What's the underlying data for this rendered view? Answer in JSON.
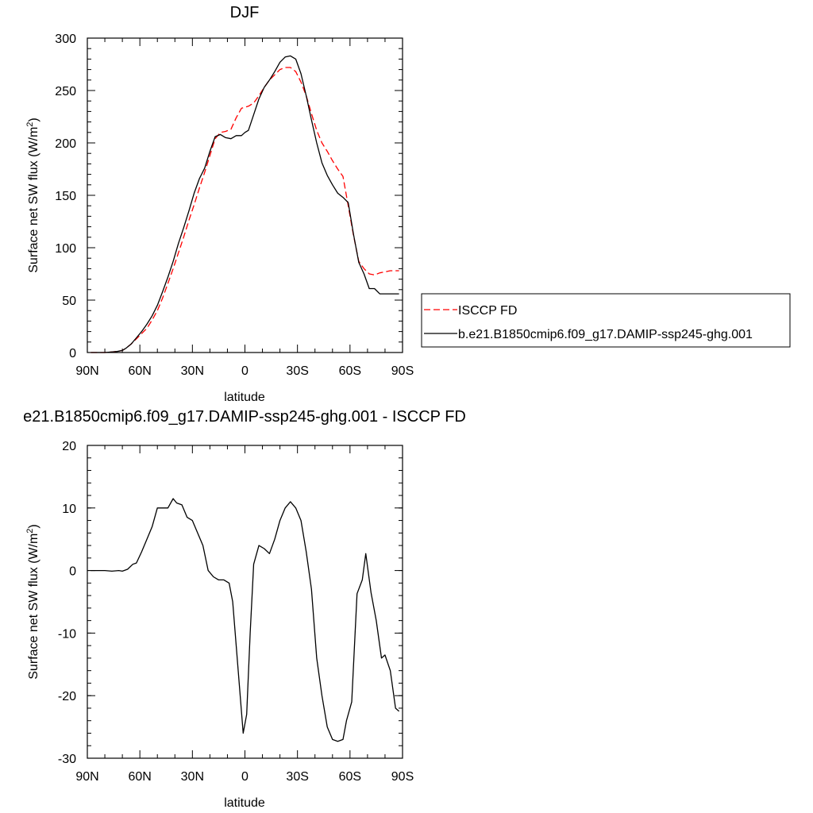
{
  "chart_data": [
    {
      "type": "line",
      "title": "DJF",
      "xlabel": "latitude",
      "ylabel": "Surface net SW flux (W/m",
      "ylabel_sup": "2",
      "ylabel_tail": ")",
      "xlim": [
        90,
        -90
      ],
      "ylim": [
        0,
        300
      ],
      "xticks": [
        90,
        60,
        30,
        0,
        -30,
        -60,
        -90
      ],
      "xtick_labels": [
        "90N",
        "60N",
        "30N",
        "0",
        "30S",
        "60S",
        "90S"
      ],
      "yticks": [
        0,
        50,
        100,
        150,
        200,
        250,
        300
      ],
      "ytick_labels": [
        "0",
        "50",
        "100",
        "150",
        "200",
        "250",
        "300"
      ],
      "legend_position": "right",
      "series": [
        {
          "name": "ISCCP FD",
          "color": "#ff0000",
          "dash": "dashed",
          "x": [
            88,
            85,
            80,
            76,
            73,
            70,
            68,
            65,
            62,
            59,
            56,
            53,
            50,
            47,
            44,
            41,
            38,
            35,
            32,
            29,
            26,
            23,
            20,
            17,
            14,
            11,
            8,
            5,
            2,
            0,
            -2,
            -5,
            -8,
            -11,
            -14,
            -17,
            -20,
            -23,
            -26,
            -29,
            -32,
            -35,
            -38,
            -41,
            -44,
            -47,
            -50,
            -53,
            -56,
            -59,
            -62,
            -65,
            -68,
            -71,
            -74,
            -77,
            -80,
            -83,
            -86,
            -88
          ],
          "y": [
            0,
            0,
            0,
            0.5,
            1,
            2,
            4,
            8,
            13,
            18,
            23,
            31,
            40,
            52,
            66,
            80,
            95,
            110,
            126,
            141,
            157,
            172,
            188,
            204,
            210,
            211,
            213,
            224,
            233,
            234,
            235,
            238,
            245,
            253,
            260,
            265,
            270,
            272,
            272,
            268,
            258,
            245,
            228,
            212,
            200,
            192,
            183,
            175,
            168,
            140,
            112,
            87,
            80,
            75,
            74,
            76,
            77,
            78,
            78,
            78
          ]
        },
        {
          "name": "b.e21.B1850cmip6.f09_g17.DAMIP-ssp245-ghg.001",
          "color": "#000000",
          "dash": "solid",
          "x": [
            88,
            85,
            80,
            76,
            73,
            70,
            68,
            65,
            62,
            59,
            56,
            53,
            50,
            47,
            44,
            41,
            38,
            35,
            32,
            29,
            26,
            23,
            20,
            17,
            14,
            11,
            8,
            5,
            2,
            0,
            -2,
            -5,
            -8,
            -11,
            -14,
            -17,
            -20,
            -23,
            -26,
            -29,
            -32,
            -35,
            -38,
            -41,
            -44,
            -47,
            -50,
            -53,
            -56,
            -59,
            -62,
            -65,
            -68,
            -71,
            -74,
            -77,
            -80,
            -83,
            -86,
            -88
          ],
          "y": [
            0,
            0,
            0,
            0.5,
            1,
            2,
            4,
            8,
            14,
            20,
            27,
            35,
            45,
            58,
            72,
            87,
            104,
            119,
            135,
            152,
            166,
            176,
            192,
            206,
            208,
            205,
            204,
            207,
            207,
            210,
            212,
            227,
            242,
            253,
            260,
            268,
            277,
            282,
            283,
            280,
            266,
            245,
            222,
            200,
            181,
            169,
            160,
            152,
            148,
            143,
            113,
            86,
            75,
            61,
            61,
            56,
            56,
            56,
            56,
            56
          ]
        }
      ]
    },
    {
      "type": "line",
      "title": "e21.B1850cmip6.f09_g17.DAMIP-ssp245-ghg.001 - ISCCP FD",
      "xlabel": "latitude",
      "ylabel": "Surface net SW flux (W/m",
      "ylabel_sup": "2",
      "ylabel_tail": ")",
      "xlim": [
        90,
        -90
      ],
      "ylim": [
        -30,
        20
      ],
      "xticks": [
        90,
        60,
        30,
        0,
        -30,
        -60,
        -90
      ],
      "xtick_labels": [
        "90N",
        "60N",
        "30N",
        "0",
        "30S",
        "60S",
        "90S"
      ],
      "yticks": [
        -30,
        -20,
        -10,
        0,
        10,
        20
      ],
      "ytick_labels": [
        "-30",
        "-20",
        "-10",
        "0",
        "10",
        "20"
      ],
      "series": [
        {
          "color": "#000000",
          "dash": "solid",
          "x": [
            88,
            84,
            80,
            76,
            72,
            70,
            67,
            64,
            62,
            59,
            56,
            53,
            50,
            47,
            44,
            41,
            39,
            36,
            33,
            30,
            27,
            24,
            21,
            18,
            15,
            12,
            9,
            7,
            5,
            3,
            1,
            -1,
            -3,
            -5,
            -8,
            -11,
            -14,
            -17,
            -20,
            -23,
            -26,
            -29,
            -32,
            -35,
            -38,
            -41,
            -44,
            -47,
            -50,
            -53,
            -56,
            -58,
            -61,
            -64,
            -67,
            -69,
            -72,
            -75,
            -78,
            -80,
            -83,
            -86,
            -88
          ],
          "y": [
            0,
            0,
            0,
            -0.1,
            0,
            -0.1,
            0.2,
            1,
            1.2,
            3,
            5,
            7,
            10,
            10,
            10,
            11.5,
            10.8,
            10.5,
            8.5,
            8,
            6,
            4,
            0,
            -1,
            -1.5,
            -1.5,
            -2,
            -5,
            -12,
            -19,
            -26,
            -23,
            -10,
            1,
            4,
            3.5,
            2.7,
            5,
            8,
            10,
            11,
            10,
            8,
            3,
            -3,
            -14,
            -20,
            -25,
            -27,
            -27.3,
            -27,
            -24,
            -21,
            -3.7,
            -1.5,
            2.7,
            -3.5,
            -8,
            -14,
            -13.5,
            -16,
            -22,
            -22.5
          ]
        }
      ]
    }
  ]
}
